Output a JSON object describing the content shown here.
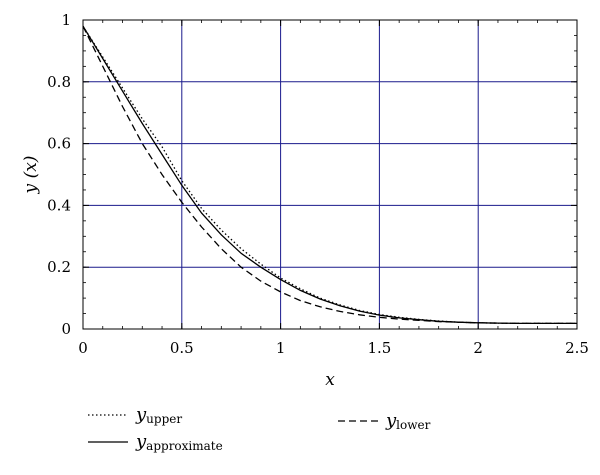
{
  "chart_data": {
    "type": "line",
    "xlabel": "x",
    "ylabel": "y (x)",
    "xlim": [
      0,
      2.5
    ],
    "ylim": [
      0,
      1
    ],
    "x_ticks": [
      "0",
      "0.5",
      "1",
      "1.5",
      "2",
      "2.5"
    ],
    "y_ticks": [
      "0",
      "0.2",
      "0.4",
      "0.6",
      "0.8",
      "1"
    ],
    "grid": true,
    "grid_color": "#1a1a8c",
    "legend_placement": "bottom",
    "series": [
      {
        "name_main": "y",
        "name_sub": "upper",
        "style": "dotted",
        "color": "#000000",
        "x": [
          0,
          0.1,
          0.2,
          0.3,
          0.4,
          0.5,
          0.6,
          0.7,
          0.8,
          0.9,
          1.0,
          1.1,
          1.2,
          1.3,
          1.4,
          1.5,
          1.6,
          1.7,
          1.8,
          1.9,
          2.0,
          2.1,
          2.2,
          2.3,
          2.4,
          2.5
        ],
        "y": [
          0.98,
          0.88,
          0.78,
          0.68,
          0.59,
          0.48,
          0.39,
          0.32,
          0.26,
          0.21,
          0.165,
          0.13,
          0.1,
          0.078,
          0.06,
          0.047,
          0.038,
          0.031,
          0.026,
          0.022,
          0.02,
          0.019,
          0.018,
          0.018,
          0.018,
          0.018
        ]
      },
      {
        "name_main": "y",
        "name_sub": "approximate",
        "style": "solid",
        "color": "#000000",
        "x": [
          0,
          0.1,
          0.2,
          0.3,
          0.4,
          0.5,
          0.6,
          0.7,
          0.8,
          0.9,
          1.0,
          1.1,
          1.2,
          1.3,
          1.4,
          1.5,
          1.6,
          1.7,
          1.8,
          1.9,
          2.0,
          2.1,
          2.2,
          2.3,
          2.4,
          2.5
        ],
        "y": [
          0.98,
          0.875,
          0.77,
          0.665,
          0.565,
          0.465,
          0.375,
          0.305,
          0.245,
          0.2,
          0.16,
          0.125,
          0.097,
          0.075,
          0.058,
          0.045,
          0.036,
          0.03,
          0.025,
          0.022,
          0.02,
          0.019,
          0.018,
          0.018,
          0.018,
          0.018
        ]
      },
      {
        "name_main": "y",
        "name_sub": "lower",
        "style": "dashed",
        "color": "#000000",
        "x": [
          0,
          0.1,
          0.2,
          0.3,
          0.4,
          0.5,
          0.6,
          0.7,
          0.8,
          0.9,
          1.0,
          1.1,
          1.2,
          1.3,
          1.4,
          1.5,
          1.6,
          1.7,
          1.8,
          1.9,
          2.0,
          2.1,
          2.2,
          2.3,
          2.4,
          2.5
        ],
        "y": [
          0.98,
          0.85,
          0.72,
          0.6,
          0.5,
          0.41,
          0.33,
          0.26,
          0.2,
          0.155,
          0.12,
          0.092,
          0.072,
          0.057,
          0.046,
          0.038,
          0.032,
          0.028,
          0.024,
          0.022,
          0.02,
          0.019,
          0.018,
          0.018,
          0.018,
          0.018
        ]
      }
    ]
  }
}
